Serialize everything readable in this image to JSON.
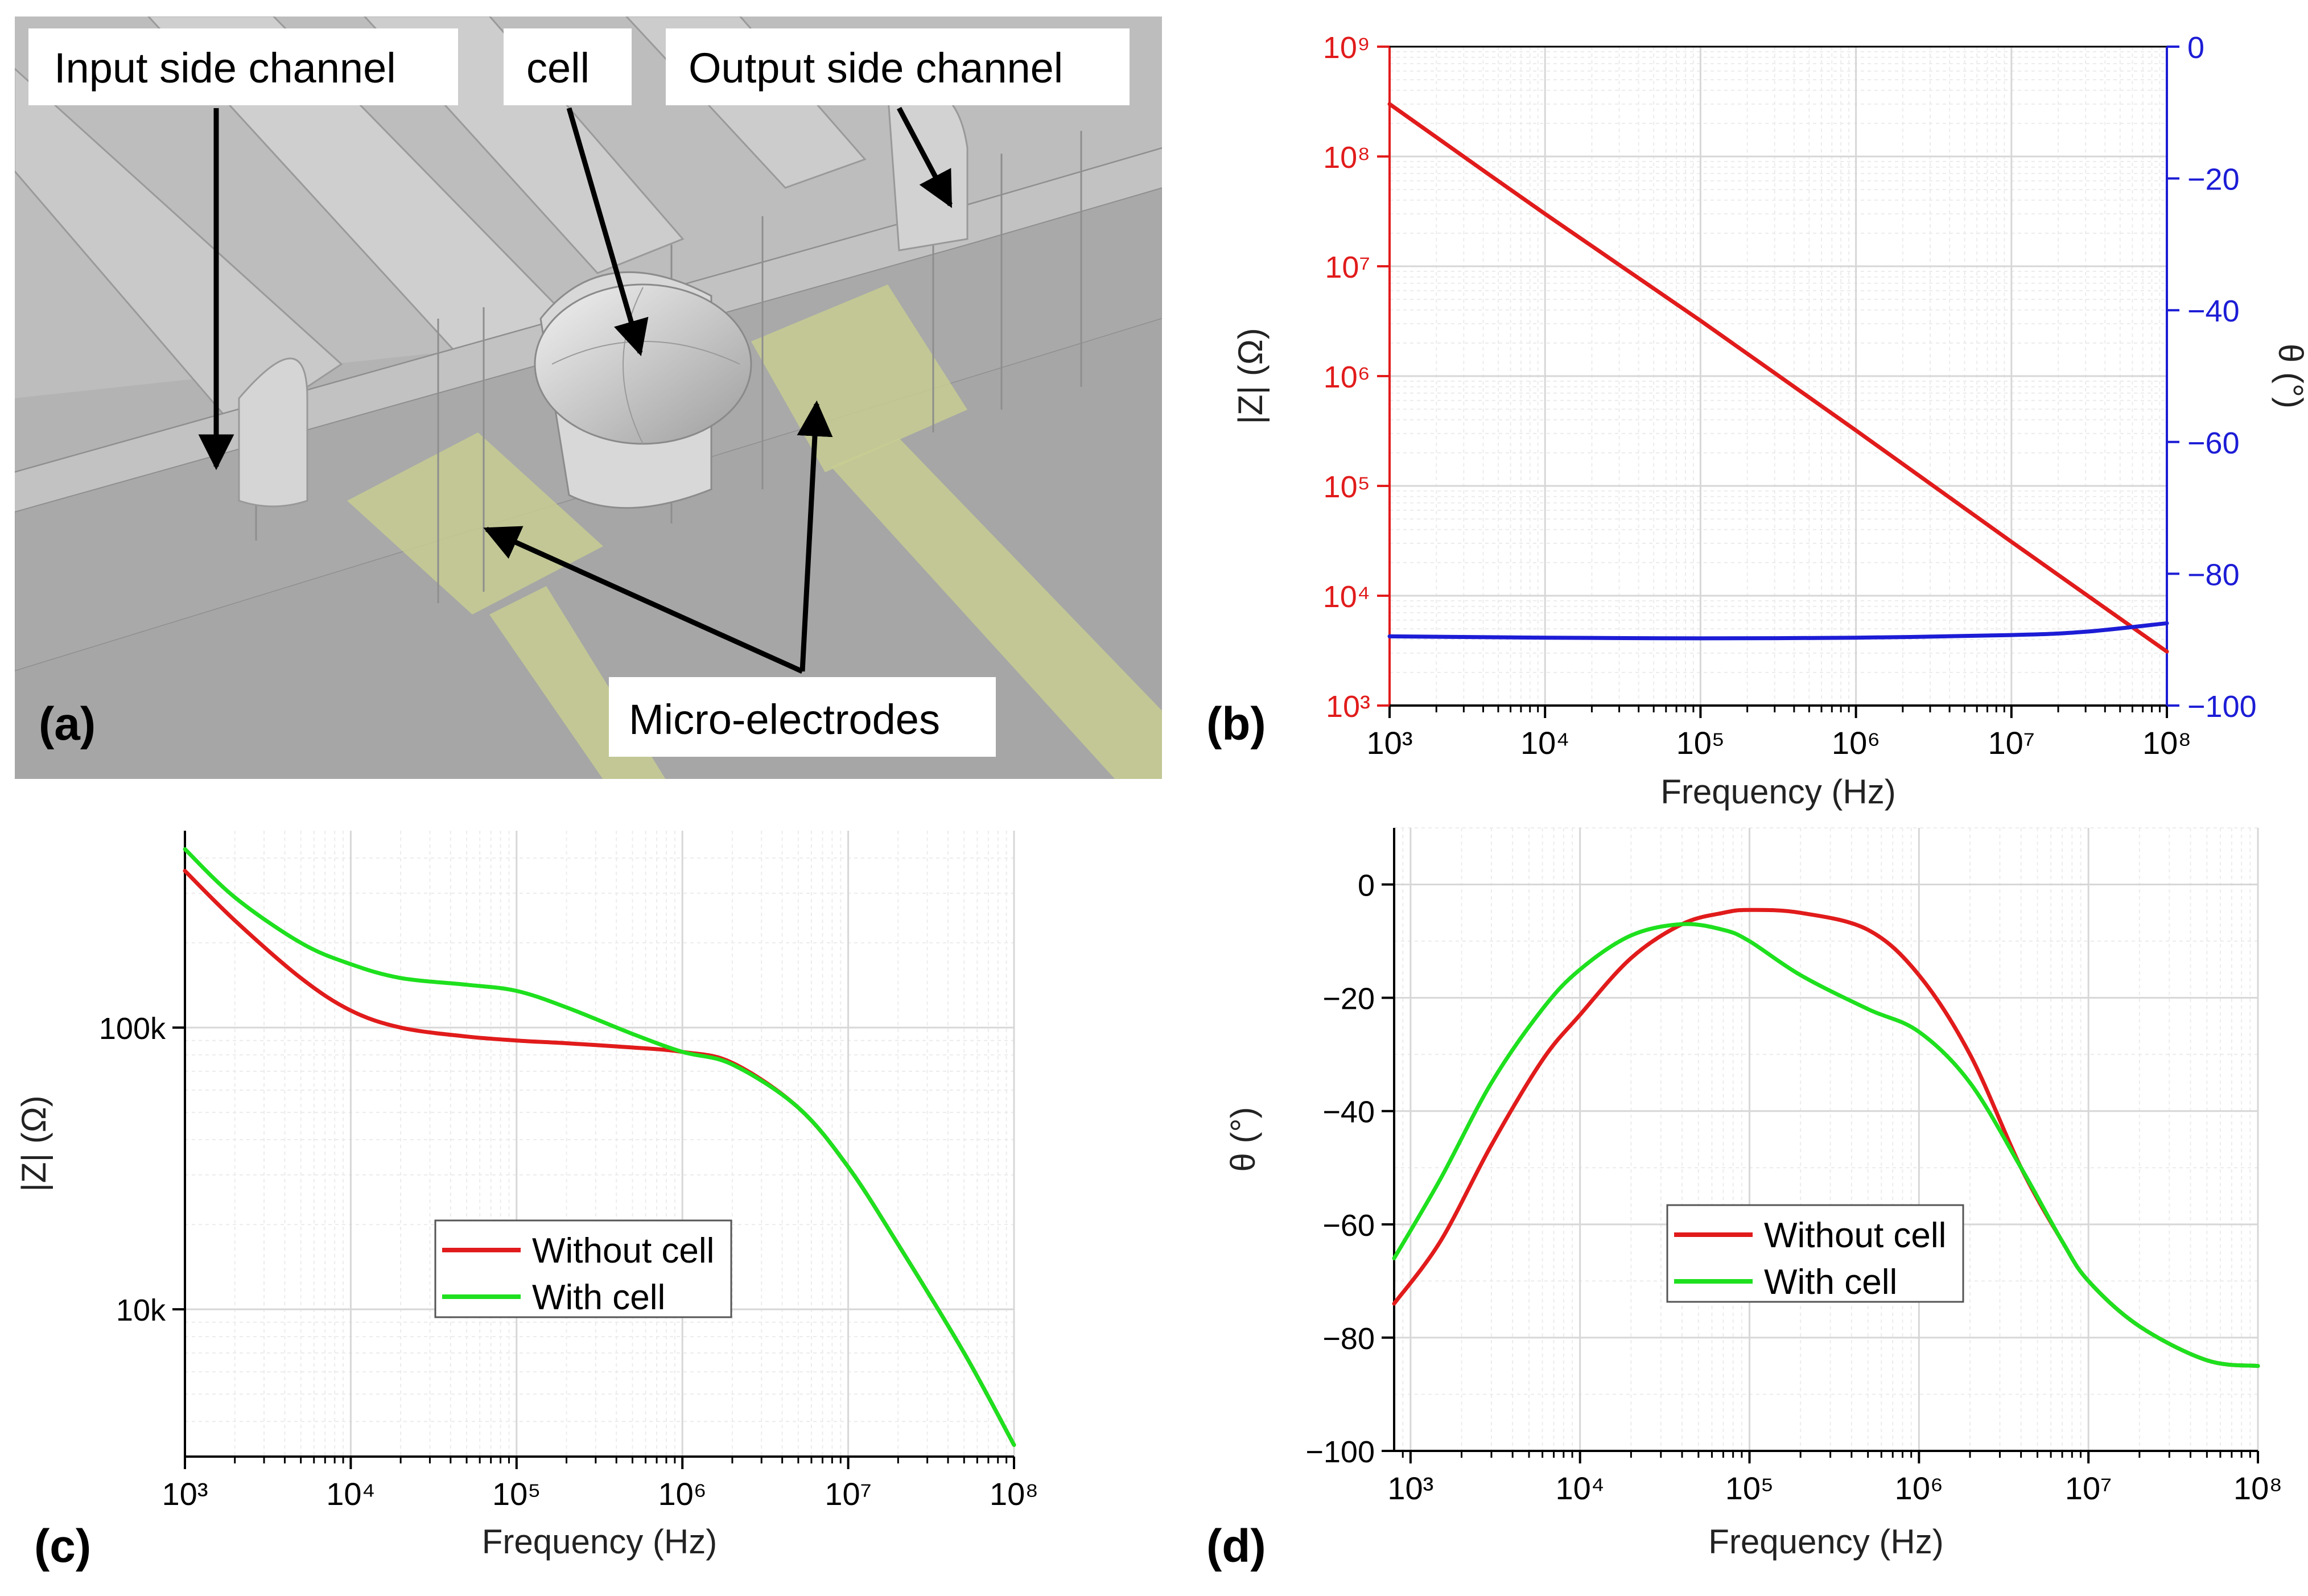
{
  "panel_a": {
    "letter": "(a)",
    "labels": {
      "input_side_channel": "Input side channel",
      "cell": "cell",
      "output_side_channel": "Output side channel",
      "micro_electrodes": "Micro-electrodes"
    }
  },
  "colors": {
    "red": "#e11b1b",
    "blue": "#1c1cd6",
    "green": "#1ee01e",
    "grid": "#d7d7d7",
    "axis": "#000000",
    "background_3d": "#b5b5b5",
    "electrode": "#c3c98e"
  },
  "chart_data": [
    {
      "id": "b",
      "letter": "(b)",
      "type": "line",
      "xscale": "log",
      "xlim": [
        1000,
        100000000
      ],
      "xticks": [
        1000,
        10000,
        100000,
        1000000,
        10000000,
        100000000
      ],
      "xtick_labels": [
        "10³",
        "10⁴",
        "10⁵",
        "10⁶",
        "10⁷",
        "10⁸"
      ],
      "xlabel": "Frequency (Hz)",
      "y_left": {
        "scale": "log",
        "lim": [
          1000,
          1000000000
        ],
        "ticks": [
          1000,
          10000,
          100000,
          1000000,
          10000000,
          100000000,
          1000000000
        ],
        "tick_labels": [
          "10³",
          "10⁴",
          "10⁵",
          "10⁶",
          "10⁷",
          "10⁸",
          "10⁹"
        ],
        "label": "|Z| (Ω)",
        "color": "#e11b1b"
      },
      "y_right": {
        "scale": "linear",
        "lim": [
          -100,
          0
        ],
        "ticks": [
          0,
          -20,
          -40,
          -60,
          -80,
          -100
        ],
        "tick_labels": [
          "0",
          "−20",
          "−40",
          "−60",
          "−80",
          "−100"
        ],
        "label": "θ (°)",
        "color": "#1c1cd6"
      },
      "grid": true,
      "series": [
        {
          "axis": "left",
          "color": "#e11b1b",
          "x": [
            1000,
            10000,
            100000,
            1000000,
            10000000,
            100000000
          ],
          "y": [
            300000000,
            30000000,
            3200000,
            320000,
            31000,
            3100
          ]
        },
        {
          "axis": "right",
          "color": "#1c1cd6",
          "x": [
            1000,
            10000,
            100000,
            1000000,
            10000000,
            30000000,
            100000000
          ],
          "y": [
            -89.5,
            -89.7,
            -89.8,
            -89.7,
            -89.3,
            -88.8,
            -87.5
          ]
        }
      ]
    },
    {
      "id": "c",
      "letter": "(c)",
      "type": "line",
      "xscale": "log",
      "xlim": [
        1000,
        100000000
      ],
      "xticks": [
        1000,
        10000,
        100000,
        1000000,
        10000000,
        100000000
      ],
      "xtick_labels": [
        "10³",
        "10⁴",
        "10⁵",
        "10⁶",
        "10⁷",
        "10⁸"
      ],
      "xlabel": "Frequency (Hz)",
      "yscale": "log",
      "ylim": [
        3000,
        500000
      ],
      "yticks": [
        10000,
        100000
      ],
      "ytick_labels": [
        "10k",
        "100k"
      ],
      "ylabel": "|Z| (Ω)",
      "grid": true,
      "legend": "center",
      "series": [
        {
          "name": "Without cell",
          "color": "#e11b1b",
          "x": [
            1000,
            2000,
            5000,
            10000,
            20000,
            50000,
            100000,
            200000,
            500000,
            1000000,
            2000000,
            5000000,
            10000000,
            20000000,
            50000000,
            100000000
          ],
          "y": [
            360000,
            240000,
            150000,
            115000,
            100000,
            93000,
            90000,
            88000,
            85000,
            82000,
            75000,
            52000,
            32000,
            17000,
            7000,
            3300
          ]
        },
        {
          "name": "With cell",
          "color": "#1ee01e",
          "x": [
            1000,
            2000,
            5000,
            10000,
            20000,
            50000,
            100000,
            200000,
            500000,
            1000000,
            2000000,
            5000000,
            10000000,
            20000000,
            50000000,
            100000000
          ],
          "y": [
            430000,
            290000,
            200000,
            168000,
            150000,
            142000,
            135000,
            118000,
            95000,
            82000,
            74000,
            52000,
            32000,
            17000,
            7000,
            3300
          ]
        }
      ]
    },
    {
      "id": "d",
      "letter": "(d)",
      "type": "line",
      "xscale": "log",
      "xlim": [
        800,
        100000000
      ],
      "xticks": [
        1000,
        10000,
        100000,
        1000000,
        10000000,
        100000000
      ],
      "xtick_labels": [
        "10³",
        "10⁴",
        "10⁵",
        "10⁶",
        "10⁷",
        "10⁸"
      ],
      "xlabel": "Frequency (Hz)",
      "yscale": "linear",
      "ylim": [
        -100,
        10
      ],
      "yticks": [
        0,
        -20,
        -40,
        -60,
        -80,
        -100
      ],
      "ytick_labels": [
        "0",
        "−20",
        "−40",
        "−60",
        "−80",
        "−100"
      ],
      "ylabel": "θ (°)",
      "grid": true,
      "legend": "center",
      "series": [
        {
          "name": "Without cell",
          "color": "#e11b1b",
          "x": [
            800,
            1500,
            3000,
            6000,
            10000,
            20000,
            40000,
            70000,
            100000,
            200000,
            500000,
            1000000,
            2000000,
            4000000,
            7000000,
            10000000,
            20000000,
            50000000,
            100000000
          ],
          "y": [
            -74,
            -63,
            -46,
            -31,
            -23,
            -13,
            -7,
            -5,
            -4.5,
            -5,
            -8,
            -16,
            -30,
            -50,
            -63,
            -70,
            -78,
            -84,
            -85
          ]
        },
        {
          "name": "With cell",
          "color": "#1ee01e",
          "x": [
            800,
            1500,
            3000,
            6000,
            10000,
            20000,
            40000,
            70000,
            100000,
            200000,
            500000,
            1000000,
            2000000,
            4000000,
            7000000,
            10000000,
            20000000,
            50000000,
            100000000
          ],
          "y": [
            -66,
            -52,
            -35,
            -22,
            -15,
            -9,
            -7,
            -8,
            -10,
            -16,
            -22,
            -26,
            -35,
            -50,
            -63,
            -70,
            -78,
            -84,
            -85
          ]
        }
      ]
    }
  ]
}
